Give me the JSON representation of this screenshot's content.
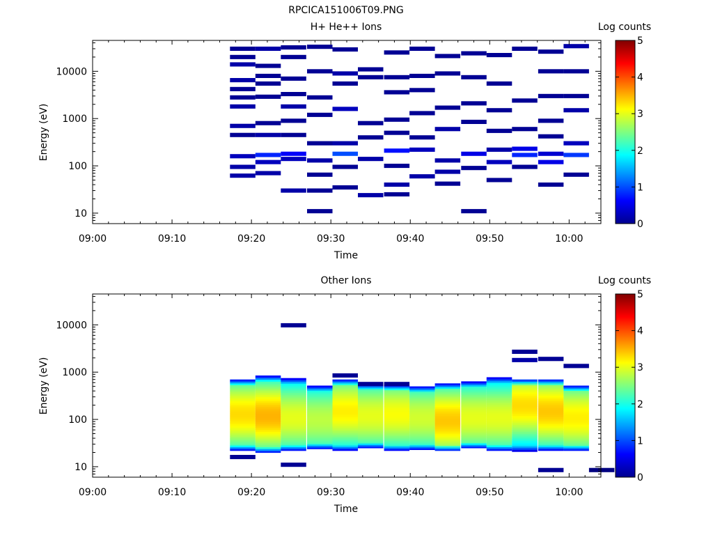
{
  "page_title": "RPCICA151006T09.PNG",
  "chart_data": [
    {
      "type": "heatmap",
      "title": "H+ He++ Ions",
      "xlabel": "Time",
      "ylabel": "Energy (eV)",
      "x_ticks": [
        "09:00",
        "09:10",
        "09:20",
        "09:30",
        "09:40",
        "09:50",
        "10:00"
      ],
      "y_ticks": [
        "10",
        "100",
        "1000",
        "10000"
      ],
      "y_scale": "log",
      "ylim": [
        6,
        45000
      ],
      "xlim_minutes": [
        0,
        64
      ],
      "colorbar": {
        "label": "Log counts",
        "ticks": [
          "0",
          "1",
          "2",
          "3",
          "4",
          "5"
        ],
        "range": [
          0,
          5
        ],
        "colormap": "jet"
      },
      "time_bins_minutes": [
        17.3,
        20.5,
        23.7,
        27.0,
        30.2,
        33.4,
        36.7,
        39.9,
        43.1,
        46.4,
        49.6,
        52.8,
        56.1,
        59.3,
        62.5
      ],
      "cells": [
        [
          0,
          62,
          0.2
        ],
        [
          0,
          95,
          0.2
        ],
        [
          0,
          160,
          0.3
        ],
        [
          0,
          450,
          0.1
        ],
        [
          0,
          700,
          0.2
        ],
        [
          0,
          1800,
          0.2
        ],
        [
          0,
          2800,
          0.1
        ],
        [
          0,
          4200,
          0.1
        ],
        [
          0,
          6500,
          0.2
        ],
        [
          0,
          14000,
          0.2
        ],
        [
          0,
          20000,
          0.1
        ],
        [
          0,
          30000,
          0.1
        ],
        [
          1,
          70,
          0.2
        ],
        [
          1,
          120,
          0.3
        ],
        [
          1,
          170,
          0.8
        ],
        [
          1,
          450,
          0.2
        ],
        [
          1,
          800,
          0.1
        ],
        [
          1,
          2900,
          0.1
        ],
        [
          1,
          5500,
          0.1
        ],
        [
          1,
          8000,
          0.1
        ],
        [
          1,
          13000,
          0.1
        ],
        [
          1,
          30000,
          0.2
        ],
        [
          2,
          30,
          0.2
        ],
        [
          2,
          140,
          0.3
        ],
        [
          2,
          180,
          0.6
        ],
        [
          2,
          450,
          0.1
        ],
        [
          2,
          900,
          0.1
        ],
        [
          2,
          1800,
          0.2
        ],
        [
          2,
          3300,
          0.1
        ],
        [
          2,
          7000,
          0.1
        ],
        [
          2,
          20000,
          0.1
        ],
        [
          2,
          32000,
          0.1
        ],
        [
          3,
          11,
          0.1
        ],
        [
          3,
          30,
          0.1
        ],
        [
          3,
          65,
          0.1
        ],
        [
          3,
          130,
          0.2
        ],
        [
          3,
          300,
          0.1
        ],
        [
          3,
          1200,
          0.1
        ],
        [
          3,
          2800,
          0.1
        ],
        [
          3,
          10000,
          0.1
        ],
        [
          3,
          33000,
          0.1
        ],
        [
          4,
          35,
          0.1
        ],
        [
          4,
          95,
          0.1
        ],
        [
          4,
          180,
          1.0
        ],
        [
          4,
          300,
          0.2
        ],
        [
          4,
          1600,
          0.3
        ],
        [
          4,
          5500,
          0.1
        ],
        [
          4,
          9000,
          0.2
        ],
        [
          4,
          29000,
          0.1
        ],
        [
          5,
          24,
          0.2
        ],
        [
          5,
          140,
          0.2
        ],
        [
          5,
          400,
          0.1
        ],
        [
          5,
          800,
          0.1
        ],
        [
          5,
          7500,
          0.1
        ],
        [
          5,
          11000,
          0.1
        ],
        [
          6,
          25,
          0.1
        ],
        [
          6,
          40,
          0.2
        ],
        [
          6,
          100,
          0.1
        ],
        [
          6,
          210,
          0.7
        ],
        [
          6,
          500,
          0.1
        ],
        [
          6,
          950,
          0.1
        ],
        [
          6,
          3600,
          0.1
        ],
        [
          6,
          7500,
          0.1
        ],
        [
          6,
          25000,
          0.1
        ],
        [
          7,
          60,
          0.2
        ],
        [
          7,
          220,
          0.3
        ],
        [
          7,
          400,
          0.1
        ],
        [
          7,
          1300,
          0.1
        ],
        [
          7,
          4000,
          0.1
        ],
        [
          7,
          8000,
          0.1
        ],
        [
          7,
          30000,
          0.1
        ],
        [
          8,
          42,
          0.1
        ],
        [
          8,
          75,
          0.2
        ],
        [
          8,
          130,
          0.2
        ],
        [
          8,
          600,
          0.2
        ],
        [
          8,
          1700,
          0.1
        ],
        [
          8,
          9000,
          0.1
        ],
        [
          8,
          21000,
          0.1
        ],
        [
          9,
          11,
          0.1
        ],
        [
          9,
          90,
          0.1
        ],
        [
          9,
          180,
          0.5
        ],
        [
          9,
          850,
          0.1
        ],
        [
          9,
          2100,
          0.1
        ],
        [
          9,
          7500,
          0.1
        ],
        [
          9,
          24000,
          0.1
        ],
        [
          10,
          50,
          0.1
        ],
        [
          10,
          120,
          0.3
        ],
        [
          10,
          220,
          0.2
        ],
        [
          10,
          550,
          0.1
        ],
        [
          10,
          1500,
          0.1
        ],
        [
          10,
          5500,
          0.1
        ],
        [
          10,
          22000,
          0.1
        ],
        [
          11,
          95,
          0.1
        ],
        [
          11,
          170,
          0.8
        ],
        [
          11,
          230,
          0.5
        ],
        [
          11,
          600,
          0.1
        ],
        [
          11,
          2400,
          0.1
        ],
        [
          11,
          30000,
          0.1
        ],
        [
          12,
          40,
          0.1
        ],
        [
          12,
          120,
          0.5
        ],
        [
          12,
          180,
          0.4
        ],
        [
          12,
          420,
          0.1
        ],
        [
          12,
          900,
          0.1
        ],
        [
          12,
          3000,
          0.1
        ],
        [
          12,
          10000,
          0.1
        ],
        [
          12,
          26000,
          0.1
        ],
        [
          13,
          65,
          0.1
        ],
        [
          13,
          170,
          0.9
        ],
        [
          13,
          300,
          0.3
        ],
        [
          13,
          1500,
          0.2
        ],
        [
          13,
          3000,
          0.1
        ],
        [
          13,
          10000,
          0.1
        ],
        [
          13,
          34000,
          0.2
        ]
      ]
    },
    {
      "type": "heatmap",
      "title": "Other Ions",
      "xlabel": "Time",
      "ylabel": "Energy (eV)",
      "x_ticks": [
        "09:00",
        "09:10",
        "09:20",
        "09:30",
        "09:40",
        "09:50",
        "10:00"
      ],
      "y_ticks": [
        "10",
        "100",
        "1000",
        "10000"
      ],
      "y_scale": "log",
      "ylim": [
        6,
        45000
      ],
      "xlim_minutes": [
        0,
        64
      ],
      "colorbar": {
        "label": "Log counts",
        "ticks": [
          "0",
          "1",
          "2",
          "3",
          "4",
          "5"
        ],
        "range": [
          0,
          5
        ],
        "colormap": "jet"
      },
      "time_bins_minutes": [
        17.3,
        20.5,
        23.7,
        27.0,
        30.2,
        33.4,
        36.7,
        39.9,
        43.1,
        46.4,
        49.6,
        52.8,
        56.1,
        59.3,
        62.5
      ],
      "spectra": [
        {
          "low": 22,
          "high": 700,
          "peak_energy": 130,
          "peak": 3.3
        },
        {
          "low": 20,
          "high": 850,
          "peak_energy": 120,
          "peak": 3.5
        },
        {
          "low": 22,
          "high": 750,
          "peak_energy": 110,
          "peak": 3.0
        },
        {
          "low": 24,
          "high": 520,
          "peak_energy": 100,
          "peak": 2.8
        },
        {
          "low": 22,
          "high": 700,
          "peak_energy": 150,
          "peak": 3.2
        },
        {
          "low": 25,
          "high": 560,
          "peak_energy": 120,
          "peak": 3.0
        },
        {
          "low": 22,
          "high": 540,
          "peak_energy": 130,
          "peak": 3.1
        },
        {
          "low": 23,
          "high": 500,
          "peak_energy": 110,
          "peak": 2.9
        },
        {
          "low": 22,
          "high": 580,
          "peak_energy": 95,
          "peak": 3.4
        },
        {
          "low": 25,
          "high": 640,
          "peak_energy": 110,
          "peak": 3.0
        },
        {
          "low": 22,
          "high": 780,
          "peak_energy": 110,
          "peak": 3.0
        },
        {
          "low": 21,
          "high": 700,
          "peak_energy": 200,
          "peak": 3.3
        },
        {
          "low": 22,
          "high": 700,
          "peak_energy": 150,
          "peak": 3.4
        },
        {
          "low": 22,
          "high": 520,
          "peak_energy": 110,
          "peak": 3.2
        }
      ],
      "extras": [
        [
          0,
          16,
          0.1
        ],
        [
          2,
          11,
          0.1
        ],
        [
          2,
          9800,
          0.1
        ],
        [
          4,
          850,
          0.1
        ],
        [
          5,
          560,
          0.1
        ],
        [
          6,
          560,
          0.1
        ],
        [
          11,
          2700,
          0.1
        ],
        [
          11,
          1800,
          0.2
        ],
        [
          12,
          1900,
          0.1
        ],
        [
          12,
          8.5,
          0.1
        ],
        [
          13,
          1350,
          0.1
        ],
        [
          14,
          8.5,
          0.0
        ]
      ]
    }
  ]
}
